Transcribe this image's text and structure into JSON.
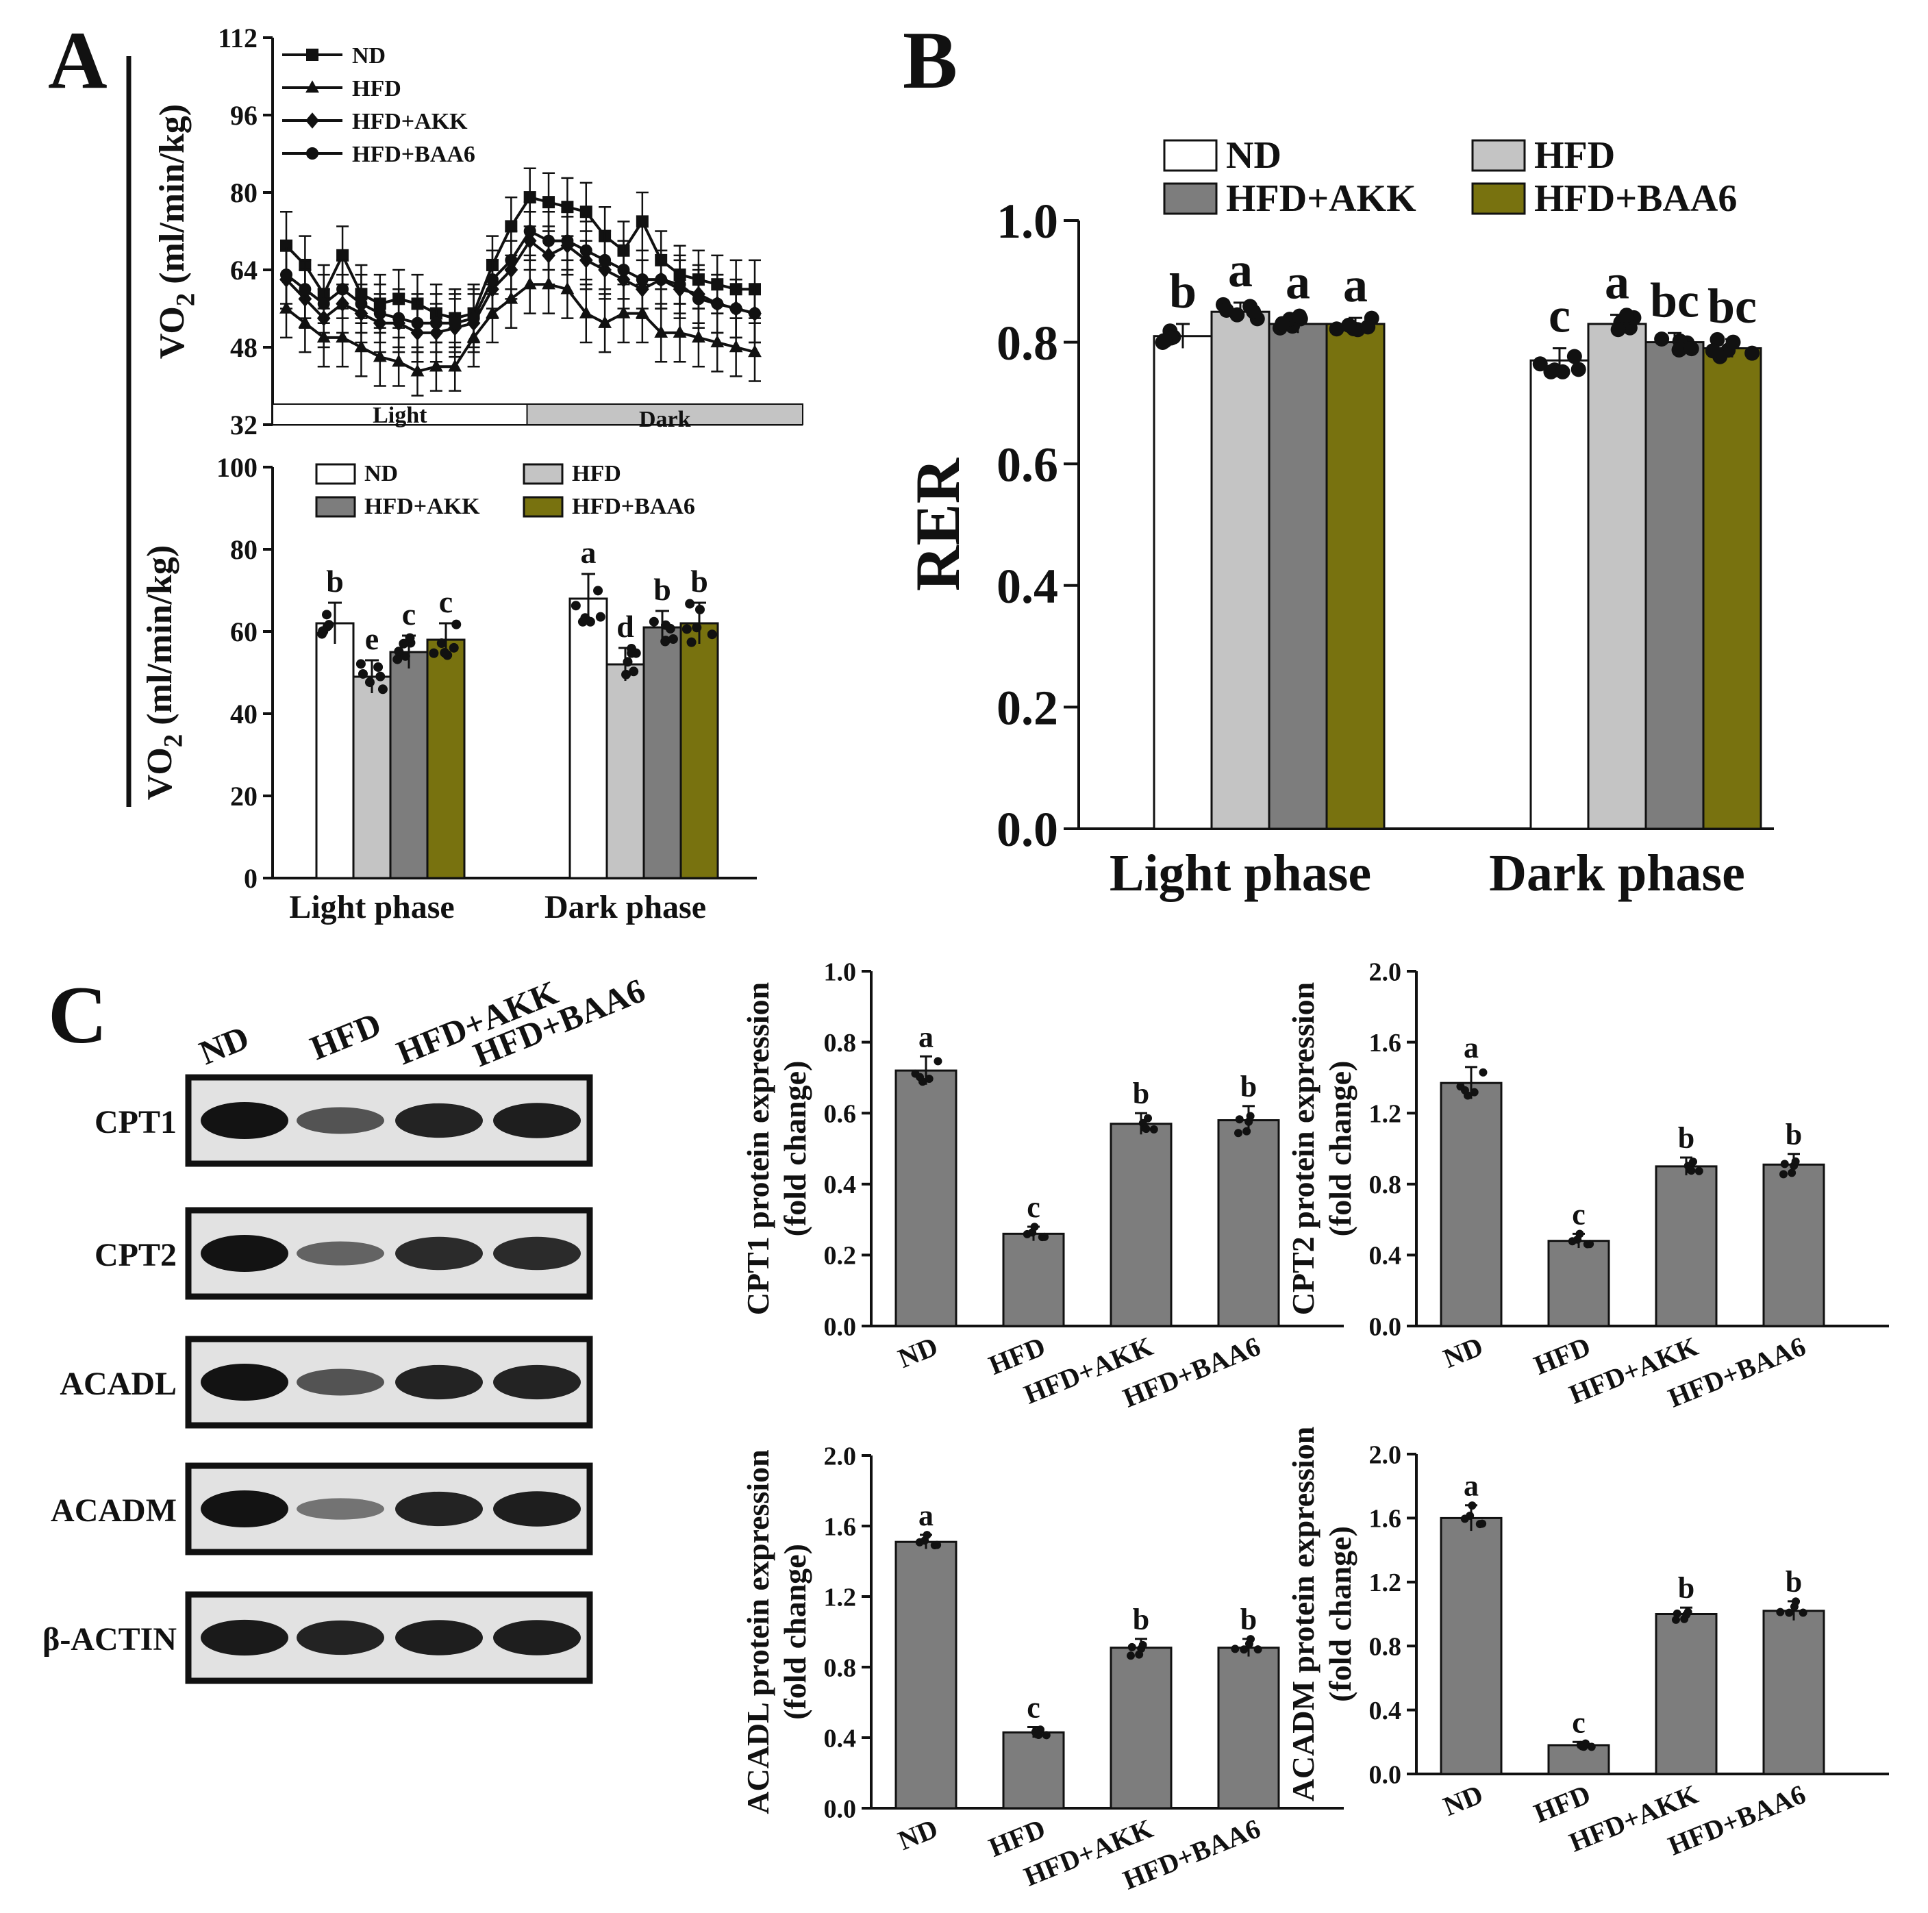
{
  "panel_labels": {
    "a": "A",
    "b": "B",
    "c": "C"
  },
  "colors": {
    "nd": "#ffffff",
    "hfd": "#c4c4c4",
    "akk": "#7d7d7d",
    "baa6": "#78720f",
    "wb": "#7d7d7d",
    "ink": "#111111",
    "light_bar": "#ffffff",
    "dark_bar": "#c4c4c4"
  },
  "chart_data": [
    {
      "id": "A-line",
      "type": "line",
      "ylabel_main": "VO",
      "ylabel_sub": "2",
      "ylabel_rest": " (ml/min/kg)",
      "ylim": [
        32,
        112
      ],
      "yticks": [
        32,
        48,
        64,
        80,
        96,
        112
      ],
      "phase_labels": [
        "Light",
        "Dark"
      ],
      "legend": [
        "ND",
        "HFD",
        "HFD+AKK",
        "HFD+BAA6"
      ],
      "series": [
        {
          "name": "ND",
          "marker": "square",
          "values": [
            69,
            65,
            59,
            67,
            59,
            57,
            58,
            57,
            55,
            54,
            55,
            65,
            73,
            79,
            78,
            77,
            76,
            71,
            68,
            74,
            66,
            63,
            62,
            61,
            60,
            60
          ],
          "errors": [
            7,
            6,
            6,
            6,
            6,
            6,
            6,
            6,
            6,
            6,
            6,
            6,
            6,
            6,
            6,
            6,
            6,
            6,
            6,
            6,
            6,
            6,
            6,
            6,
            6,
            6
          ]
        },
        {
          "name": "HFD",
          "marker": "triangle",
          "values": [
            56,
            53,
            50,
            50,
            48,
            46,
            45,
            43,
            44,
            44,
            50,
            55,
            58,
            61,
            61,
            60,
            55,
            53,
            55,
            55,
            51,
            51,
            50,
            49,
            48,
            47
          ],
          "errors": [
            6,
            6,
            6,
            6,
            6,
            6,
            5,
            5,
            5,
            5,
            6,
            6,
            6,
            6,
            6,
            6,
            6,
            6,
            6,
            6,
            6,
            6,
            6,
            6,
            6,
            6
          ]
        },
        {
          "name": "HFD+AKK",
          "marker": "diamond",
          "values": [
            62,
            58,
            54,
            57,
            55,
            53,
            53,
            51,
            51,
            52,
            53,
            60,
            64,
            70,
            67,
            69,
            66,
            64,
            62,
            60,
            62,
            60,
            59,
            57,
            56,
            55
          ],
          "errors": [
            6,
            6,
            6,
            6,
            6,
            6,
            6,
            6,
            6,
            6,
            6,
            6,
            6,
            6,
            6,
            6,
            6,
            6,
            6,
            6,
            6,
            6,
            6,
            6,
            6,
            6
          ]
        },
        {
          "name": "HFD+BAA6",
          "marker": "circle",
          "values": [
            63,
            60,
            57,
            60,
            57,
            55,
            54,
            53,
            53,
            53,
            54,
            62,
            66,
            72,
            70,
            70,
            68,
            66,
            64,
            62,
            62,
            61,
            58,
            57,
            56,
            55
          ],
          "errors": [
            6,
            6,
            6,
            6,
            6,
            6,
            6,
            6,
            6,
            6,
            6,
            6,
            6,
            6,
            6,
            6,
            6,
            6,
            6,
            6,
            6,
            6,
            6,
            6,
            6,
            6
          ]
        }
      ]
    },
    {
      "id": "A-bar",
      "type": "bar",
      "ylabel_main": "VO",
      "ylabel_sub": "2",
      "ylabel_rest": " (ml/min/kg)",
      "ylim": [
        0,
        100
      ],
      "yticks": [
        0,
        20,
        40,
        60,
        80,
        100
      ],
      "categories": [
        "Light phase",
        "Dark phase"
      ],
      "legend": [
        "ND",
        "HFD",
        "HFD+AKK",
        "HFD+BAA6"
      ],
      "series": [
        {
          "name": "ND",
          "values": [
            62,
            68
          ],
          "errors": [
            5,
            6
          ],
          "letters": [
            "b",
            "a"
          ]
        },
        {
          "name": "HFD",
          "values": [
            49,
            52
          ],
          "errors": [
            4,
            4
          ],
          "letters": [
            "e",
            "d"
          ]
        },
        {
          "name": "HFD+AKK",
          "values": [
            55,
            61
          ],
          "errors": [
            4,
            4
          ],
          "letters": [
            "c",
            "b"
          ]
        },
        {
          "name": "HFD+BAA6",
          "values": [
            58,
            62
          ],
          "errors": [
            4,
            5
          ],
          "letters": [
            "c",
            "b"
          ]
        }
      ]
    },
    {
      "id": "B",
      "type": "bar",
      "ylabel": "RER",
      "ylim": [
        0,
        1.0
      ],
      "yticks": [
        "0.0",
        "0.2",
        "0.4",
        "0.6",
        "0.8",
        "1.0"
      ],
      "categories": [
        "Light phase",
        "Dark phase"
      ],
      "legend": [
        "ND",
        "HFD",
        "HFD+AKK",
        "HFD+BAA6"
      ],
      "series": [
        {
          "name": "ND",
          "values": [
            0.81,
            0.77
          ],
          "errors": [
            0.02,
            0.02
          ],
          "letters": [
            "b",
            "c"
          ]
        },
        {
          "name": "HFD",
          "values": [
            0.85,
            0.83
          ],
          "errors": [
            0.015,
            0.015
          ],
          "letters": [
            "a",
            "a"
          ]
        },
        {
          "name": "HFD+AKK",
          "values": [
            0.83,
            0.8
          ],
          "errors": [
            0.015,
            0.015
          ],
          "letters": [
            "a",
            "bc"
          ]
        },
        {
          "name": "HFD+BAA6",
          "values": [
            0.83,
            0.79
          ],
          "errors": [
            0.01,
            0.015
          ],
          "letters": [
            "a",
            "bc"
          ]
        }
      ]
    },
    {
      "id": "CPT1",
      "type": "bar",
      "ylabel1": "CPT1 protein expression",
      "ylabel2": "(fold change)",
      "ylim": [
        0,
        1.0
      ],
      "yticks": [
        "0.0",
        "0.2",
        "0.4",
        "0.6",
        "0.8",
        "1.0"
      ],
      "categories": [
        "ND",
        "HFD",
        "HFD+AKK",
        "HFD+BAA6"
      ],
      "values": [
        0.72,
        0.26,
        0.57,
        0.58
      ],
      "errors": [
        0.04,
        0.02,
        0.03,
        0.04
      ],
      "letters": [
        "a",
        "c",
        "b",
        "b"
      ]
    },
    {
      "id": "CPT2",
      "type": "bar",
      "ylabel1": "CPT2 protein expression",
      "ylabel2": "(fold change)",
      "ylim": [
        0,
        2.0
      ],
      "yticks": [
        "0.0",
        "0.4",
        "0.8",
        "1.2",
        "1.6",
        "2.0"
      ],
      "categories": [
        "ND",
        "HFD",
        "HFD+AKK",
        "HFD+BAA6"
      ],
      "values": [
        1.37,
        0.48,
        0.9,
        0.91
      ],
      "errors": [
        0.09,
        0.04,
        0.05,
        0.06
      ],
      "letters": [
        "a",
        "c",
        "b",
        "b"
      ]
    },
    {
      "id": "ACADL",
      "type": "bar",
      "ylabel1": "ACADL protein expression",
      "ylabel2": "(fold change)",
      "ylim": [
        0,
        2.0
      ],
      "yticks": [
        "0.0",
        "0.4",
        "0.8",
        "1.2",
        "1.6",
        "2.0"
      ],
      "categories": [
        "ND",
        "HFD",
        "HFD+AKK",
        "HFD+BAA6"
      ],
      "values": [
        1.51,
        0.43,
        0.91,
        0.91
      ],
      "errors": [
        0.04,
        0.03,
        0.05,
        0.05
      ],
      "letters": [
        "a",
        "c",
        "b",
        "b"
      ]
    },
    {
      "id": "ACADM",
      "type": "bar",
      "ylabel1": "ACADM protein expression",
      "ylabel2": "(fold change)",
      "ylim": [
        0,
        2.0
      ],
      "yticks": [
        "0.0",
        "0.4",
        "0.8",
        "1.2",
        "1.6",
        "2.0"
      ],
      "categories": [
        "ND",
        "HFD",
        "HFD+AKK",
        "HFD+BAA6"
      ],
      "values": [
        1.6,
        0.18,
        1.0,
        1.02
      ],
      "errors": [
        0.08,
        0.02,
        0.04,
        0.06
      ],
      "letters": [
        "a",
        "c",
        "b",
        "b"
      ]
    }
  ],
  "western_blot": {
    "lane_labels": [
      "ND",
      "HFD",
      "HFD+AKK",
      "HFD+BAA6"
    ],
    "rows": [
      {
        "label": "CPT1",
        "intensity": [
          0.95,
          0.55,
          0.85,
          0.88
        ]
      },
      {
        "label": "CPT2",
        "intensity": [
          0.95,
          0.45,
          0.8,
          0.8
        ]
      },
      {
        "label": "ACADL",
        "intensity": [
          0.95,
          0.55,
          0.85,
          0.85
        ]
      },
      {
        "label": "ACADM",
        "intensity": [
          0.95,
          0.35,
          0.85,
          0.88
        ]
      },
      {
        "label": "β-ACTIN",
        "intensity": [
          0.9,
          0.85,
          0.88,
          0.88
        ]
      }
    ]
  }
}
